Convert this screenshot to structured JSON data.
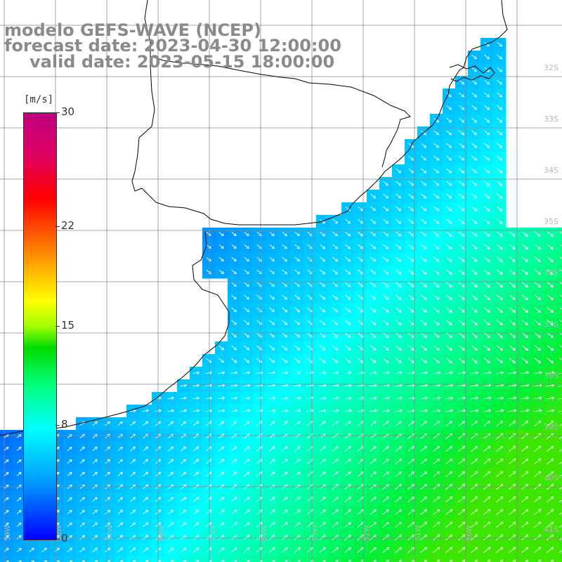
{
  "header": {
    "model": "modelo GEFS-WAVE (NCEP)",
    "forecast": "forecast date: 2023-04-30 12:00:00",
    "valid": "valid date: 2023-05-15 18:00:00"
  },
  "legend": {
    "unit": "[m/s]",
    "ticks": [
      "30",
      "22",
      "15",
      "8",
      "0"
    ],
    "tick_values": [
      30,
      22,
      15,
      8,
      0
    ],
    "range": [
      0,
      30
    ],
    "colors": {
      "c0": "#0000ff",
      "c4": "#00a0ff",
      "c8": "#00ffff",
      "c11": "#00ff80",
      "c13": "#00dd00",
      "c15": "#a0ff00",
      "c17": "#ffff00",
      "c20": "#ff8000",
      "c24": "#ff0000",
      "c27": "#e00060",
      "c30": "#c00080"
    }
  },
  "map": {
    "land_color": "#ffffff",
    "grid_color": "#888888",
    "coastline_color": "#000000",
    "arrow_color": "#ffffff",
    "lat_labels": [
      "32S",
      "33S",
      "34S",
      "35S",
      "36S",
      "37S",
      "38S",
      "39S",
      "40S",
      "41S"
    ],
    "lon_labels": [
      "59W",
      "58W",
      "57W",
      "56W",
      "55W",
      "54W",
      "53W",
      "52W",
      "51W",
      "50W"
    ]
  }
}
